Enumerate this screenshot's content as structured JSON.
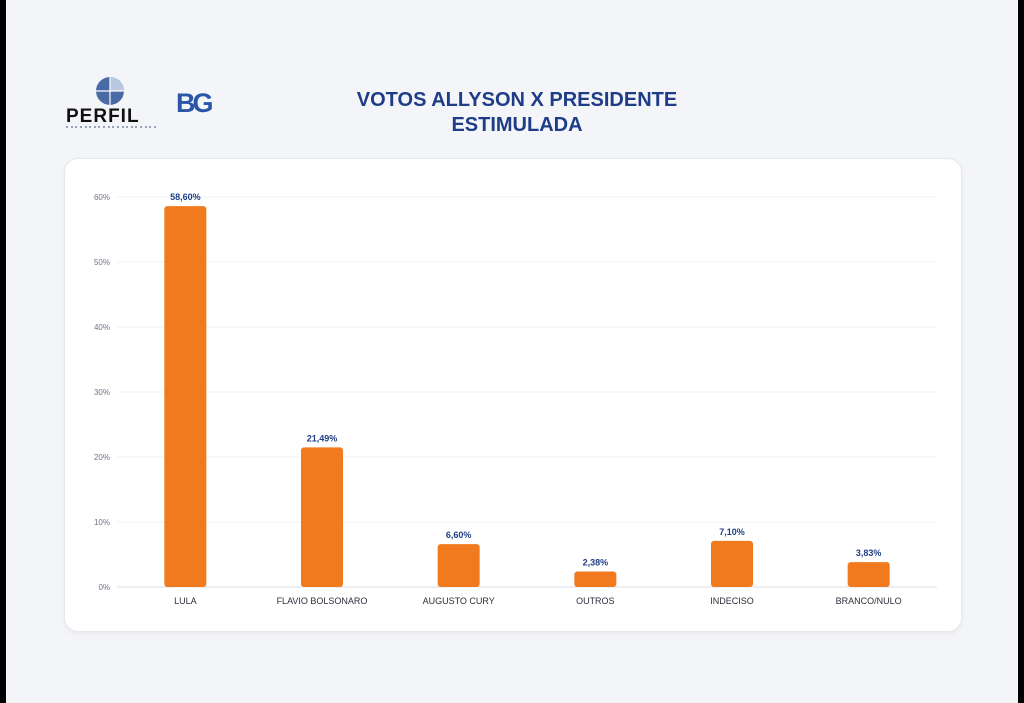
{
  "header": {
    "title_line1": "VOTOS ALLYSON X PRESIDENTE",
    "title_line2": "ESTIMULADA",
    "logo_perfil": "PERFIL",
    "logo_bg": "BG"
  },
  "colors": {
    "bar": "#f07a1d",
    "title": "#1f3d86",
    "bg_logo": "#2a56a8",
    "page_background": "#f4f5f8"
  },
  "chart_data": {
    "type": "bar",
    "title": "VOTOS ALLYSON X PRESIDENTE ESTIMULADA",
    "categories": [
      "LULA",
      "FLAVIO BOLSONARO",
      "AUGUSTO CURY",
      "OUTROS",
      "INDECISO",
      "BRANCO/NULO"
    ],
    "values": [
      58.6,
      21.49,
      6.6,
      2.38,
      7.1,
      3.83
    ],
    "value_labels": [
      "58,60%",
      "21,49%",
      "6,60%",
      "2,38%",
      "7,10%",
      "3,83%"
    ],
    "y_ticks": [
      0,
      10,
      20,
      30,
      40,
      50,
      60
    ],
    "y_tick_labels": [
      "0%",
      "10%",
      "20%",
      "30%",
      "40%",
      "50%",
      "60%"
    ],
    "ylim": [
      0,
      60
    ],
    "xlabel": "",
    "ylabel": "",
    "grid": true,
    "legend": "none"
  }
}
